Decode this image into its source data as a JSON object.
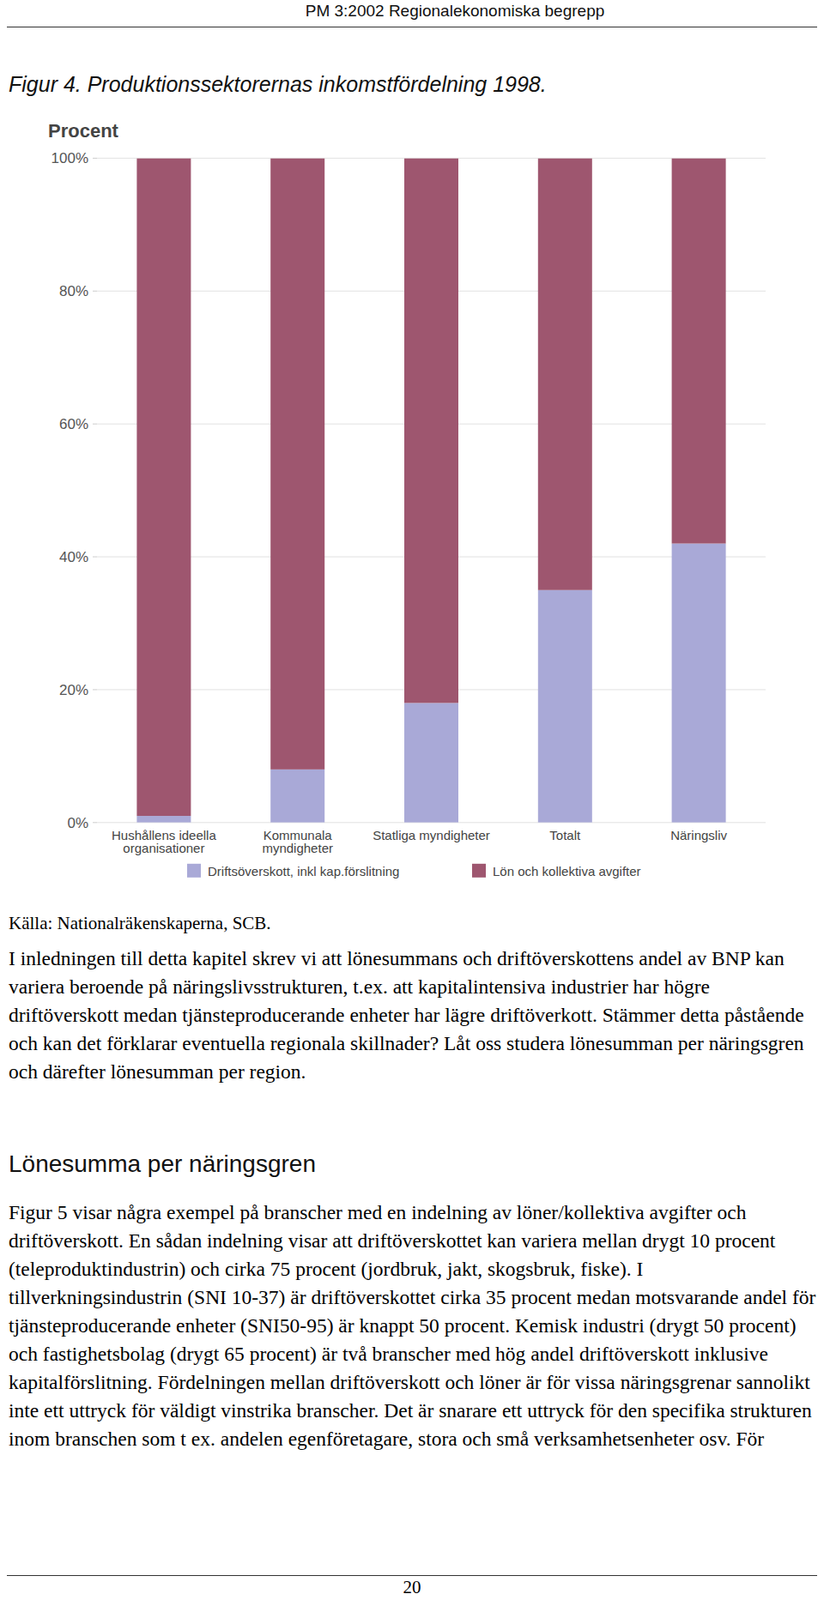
{
  "chart_data": {
    "type": "bar",
    "stacked": true,
    "title": "Figur 4. Produktionssektorernas inkomstfördelning 1998.",
    "ylabel": "Procent",
    "categories": [
      "Hushållens ideella organisationer",
      "Kommunala myndigheter",
      "Statliga myndigheter",
      "Totalt",
      "Näringsliv"
    ],
    "series": [
      {
        "name": "Driftsöverskott, inkl kap.förslitning",
        "color": "#a9a9d7",
        "values": [
          1,
          8,
          18,
          35,
          42
        ]
      },
      {
        "name": "Lön och kollektiva avgifter",
        "color": "#9e566f",
        "values": [
          99,
          92,
          82,
          65,
          58
        ]
      }
    ],
    "ylim": [
      0,
      100
    ],
    "yticks": [
      {
        "value": 0,
        "label": "0%"
      },
      {
        "value": 20,
        "label": "20%"
      },
      {
        "value": 40,
        "label": "40%"
      },
      {
        "value": 60,
        "label": "60%"
      },
      {
        "value": 80,
        "label": "80%"
      },
      {
        "value": 100,
        "label": "100%"
      }
    ],
    "grid": true,
    "legend": "bottom"
  },
  "document": {
    "header": "PM 3:2002 Regionalekonomiska begrepp",
    "source": "Källa: Nationalräkenskaperna, SCB.",
    "intro_paragraph": "I inledningen till detta kapitel skrev vi att lönesummans och driftöverskottens andel av BNP kan variera beroende på näringslivsstrukturen, t.ex. att kapitalintensiva industrier har högre driftöverskott medan tjänsteproducerande enheter har lägre driftöverkott. Stämmer detta påstående och kan det förklarar eventuella regionala skillnader? Låt oss studera lönesumman per näringsgren och därefter lönesumman per region.",
    "section": {
      "heading": "Lönesumma per näringsgren",
      "paragraph": "Figur 5 visar några exempel på branscher med en indelning av löner/kollektiva avgifter och driftöverskott. En sådan indelning visar att driftöverskottet kan variera mellan drygt 10 procent (teleproduktindustrin) och cirka 75 procent (jordbruk, jakt, skogsbruk, fiske). I tillverkningsindustrin (SNI 10-37) är driftöverskottet cirka 35 procent medan motsvarande andel för tjänsteproducerande enheter (SNI50-95) är knappt 50 procent. Kemisk industri (drygt 50 procent) och fastighetsbolag (drygt 65 procent) är två branscher med hög andel driftöverskott inklusive kapitalförslitning. Fördelningen mellan driftöverskott och löner är för vissa näringsgrenar sannolikt inte ett uttryck för väldigt vinstrika branscher. Det är snarare ett uttryck för den specifika strukturen inom branschen som t ex. andelen egenföretagare, stora och små verksamhetsenheter osv. För"
    },
    "page_number": "20"
  }
}
